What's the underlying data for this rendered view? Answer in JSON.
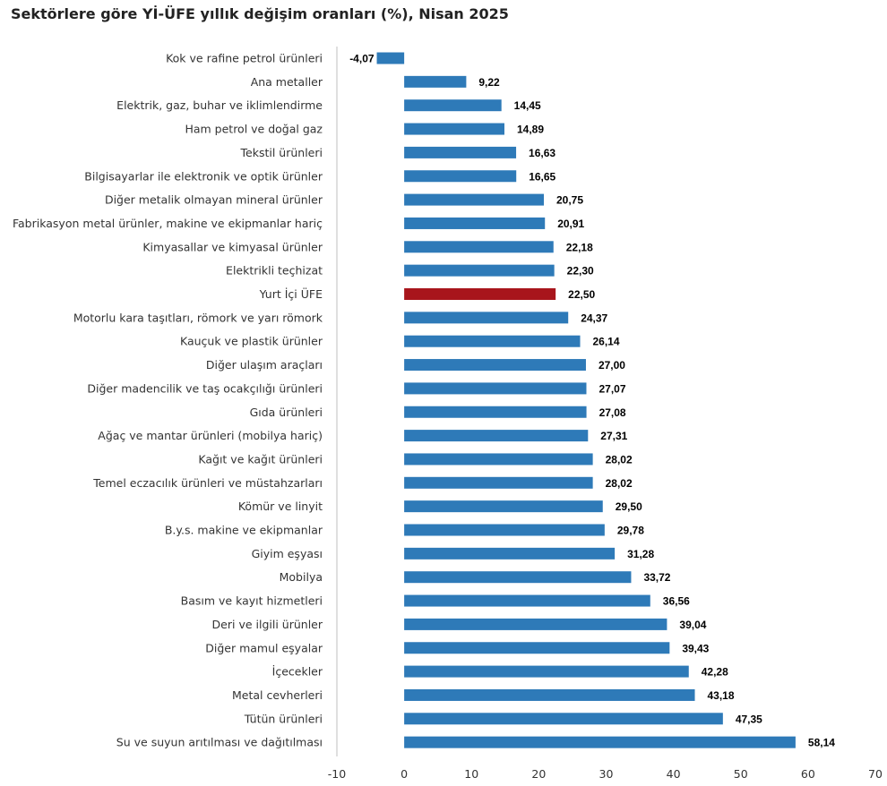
{
  "title": "Sektörlere göre Yİ-ÜFE yıllık değişim oranları (%), Nisan 2025",
  "colors": {
    "bar": "#2e7ab8",
    "highlight": "#a8151c",
    "axis": "#bfbfbf"
  },
  "chart_data": {
    "type": "bar",
    "orientation": "horizontal",
    "title": "Sektörlere göre Yİ-ÜFE yıllık değişim oranları (%), Nisan 2025",
    "xlabel": "",
    "ylabel": "",
    "xlim": [
      -10,
      70
    ],
    "x_ticks": [
      -10,
      0,
      10,
      20,
      30,
      40,
      50,
      60,
      70
    ],
    "x_tick_labels": [
      "-10",
      "0",
      "10",
      "20",
      "30",
      "40",
      "50",
      "60",
      "70"
    ],
    "grid": false,
    "highlight_category": "Yurt İçi ÜFE",
    "categories": [
      "Kok ve rafine petrol ürünleri",
      "Ana metaller",
      "Elektrik, gaz, buhar ve iklimlendirme",
      "Ham petrol ve doğal gaz",
      "Tekstil ürünleri",
      "Bilgisayarlar ile elektronik ve optik ürünler",
      "Diğer metalik olmayan mineral ürünler",
      "Fabrikasyon metal ürünler, makine ve ekipmanlar hariç",
      "Kimyasallar ve kimyasal ürünler",
      "Elektrikli teçhizat",
      "Yurt İçi ÜFE",
      "Motorlu kara taşıtları, römork ve yarı römork",
      "Kauçuk ve plastik ürünler",
      "Diğer ulaşım araçları",
      "Diğer madencilik ve taş ocakçılığı ürünleri",
      "Gıda ürünleri",
      "Ağaç ve mantar ürünleri (mobilya hariç)",
      "Kağıt ve kağıt ürünleri",
      "Temel eczacılık ürünleri ve müstahzarları",
      "Kömür ve linyit",
      "B.y.s. makine ve ekipmanlar",
      "Giyim eşyası",
      "Mobilya",
      "Basım ve kayıt hizmetleri",
      "Deri ve ilgili ürünler",
      "Diğer mamul eşyalar",
      "İçecekler",
      "Metal cevherleri",
      "Tütün ürünleri",
      "Su ve suyun arıtılması ve dağıtılması"
    ],
    "values": [
      -4.07,
      9.22,
      14.45,
      14.89,
      16.63,
      16.65,
      20.75,
      20.91,
      22.18,
      22.3,
      22.5,
      24.37,
      26.14,
      27.0,
      27.07,
      27.08,
      27.31,
      28.02,
      28.02,
      29.5,
      29.78,
      31.28,
      33.72,
      36.56,
      39.04,
      39.43,
      42.28,
      43.18,
      47.35,
      58.14
    ],
    "value_labels": [
      "-4,07",
      "9,22",
      "14,45",
      "14,89",
      "16,63",
      "16,65",
      "20,75",
      "20,91",
      "22,18",
      "22,30",
      "22,50",
      "24,37",
      "26,14",
      "27,00",
      "27,07",
      "27,08",
      "27,31",
      "28,02",
      "28,02",
      "29,50",
      "29,78",
      "31,28",
      "33,72",
      "36,56",
      "39,04",
      "39,43",
      "42,28",
      "43,18",
      "47,35",
      "58,14"
    ]
  }
}
